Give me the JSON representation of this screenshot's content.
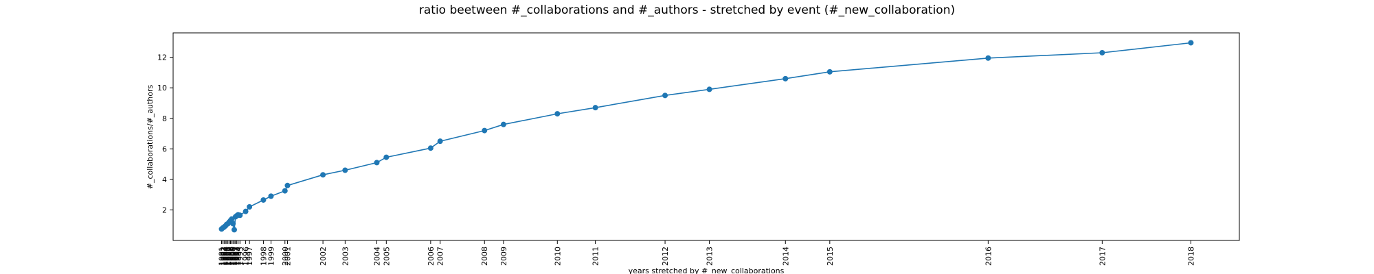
{
  "chart_data": {
    "type": "line",
    "title": "ratio beetween #_collaborations and #_authors - stretched by event (#_new_collaboration)",
    "xlabel": "years stretched by #_new_collaborations",
    "ylabel": "#_collaborations/#_authors",
    "ylim": [
      0.0,
      13.6
    ],
    "yticks": [
      2,
      4,
      6,
      8,
      10,
      12
    ],
    "grid": false,
    "series_color": "#1f77b4",
    "x_ticklabels": [
      "1981",
      "1982",
      "1983",
      "1984",
      "1985",
      "1986",
      "1987",
      "1988",
      "1989",
      "1990",
      "1991",
      "1992",
      "1993",
      "1994",
      "1995",
      "1996",
      "1997",
      "1998",
      "1999",
      "2000",
      "2001",
      "2002",
      "2003",
      "2004",
      "2005",
      "2006",
      "2007",
      "2008",
      "2009",
      "2010",
      "2011",
      "2012",
      "2013",
      "2014",
      "2015",
      "2016",
      "2017",
      "2018"
    ],
    "x_positions": [
      0.0,
      0.2,
      0.4,
      0.6,
      0.8,
      1.0,
      1.2,
      1.4,
      1.6,
      1.8,
      2.0,
      2.2,
      2.4,
      2.6,
      2.9,
      3.8,
      4.4,
      6.6,
      7.8,
      10.0,
      10.4,
      16.0,
      19.5,
      24.5,
      26.0,
      33.0,
      34.5,
      41.5,
      44.5,
      53.0,
      59.0,
      70.0,
      77.0,
      89.0,
      96.0,
      121.0,
      139.0,
      153.0
    ],
    "y": [
      0.75,
      0.82,
      0.88,
      0.95,
      1.05,
      1.1,
      1.2,
      1.3,
      1.4,
      1.1,
      0.7,
      1.55,
      1.62,
      1.68,
      1.65,
      1.9,
      2.2,
      2.65,
      2.9,
      3.25,
      3.6,
      4.3,
      4.6,
      5.1,
      5.45,
      6.05,
      6.5,
      7.2,
      7.6,
      8.3,
      8.7,
      9.5,
      9.9,
      10.6,
      11.05,
      11.95,
      12.3,
      12.95
    ]
  }
}
